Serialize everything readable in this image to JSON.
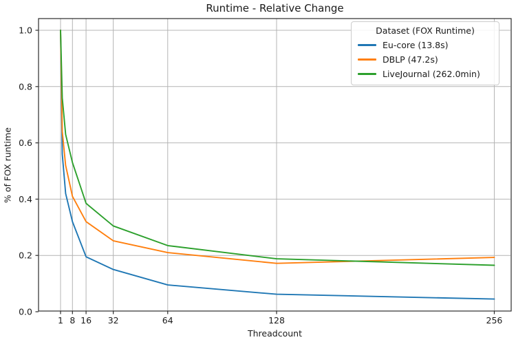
{
  "figure": {
    "title": "Runtime - Relative Change",
    "xlabel": "Threadcount",
    "ylabel": "% of FOX runtime"
  },
  "legend": {
    "title": "Dataset (FOX Runtime)",
    "position": "upper right"
  },
  "chart_data": {
    "type": "line",
    "title": "Runtime - Relative Change",
    "xlabel": "Threadcount",
    "ylabel": "% of FOX runtime",
    "x": [
      1,
      2,
      4,
      8,
      16,
      32,
      64,
      128,
      256
    ],
    "series": [
      {
        "name": "Eu-core (13.8s)",
        "color": "#1f77b4",
        "values": [
          1.0,
          0.56,
          0.42,
          0.32,
          0.195,
          0.15,
          0.095,
          0.062,
          0.045
        ]
      },
      {
        "name": "DBLP (47.2s)",
        "color": "#ff7f0e",
        "values": [
          1.0,
          0.64,
          0.52,
          0.41,
          0.32,
          0.252,
          0.21,
          0.172,
          0.193
        ]
      },
      {
        "name": "LiveJournal (262.0min)",
        "color": "#2ca02c",
        "values": [
          1.0,
          0.76,
          0.63,
          0.53,
          0.385,
          0.305,
          0.235,
          0.188,
          0.165
        ]
      }
    ],
    "xticks": [
      1,
      8,
      16,
      32,
      64,
      128,
      256
    ],
    "yticks": [
      0.0,
      0.2,
      0.4,
      0.6,
      0.8,
      1.0
    ],
    "xlim": [
      -11.9,
      266.1
    ],
    "ylim": [
      0.0,
      1.04
    ],
    "grid": true,
    "grid_color": "#b4b4b4",
    "spine_color": "#2b2b2b",
    "legend_title": "Dataset (FOX Runtime)",
    "legend_position": "upper right"
  }
}
